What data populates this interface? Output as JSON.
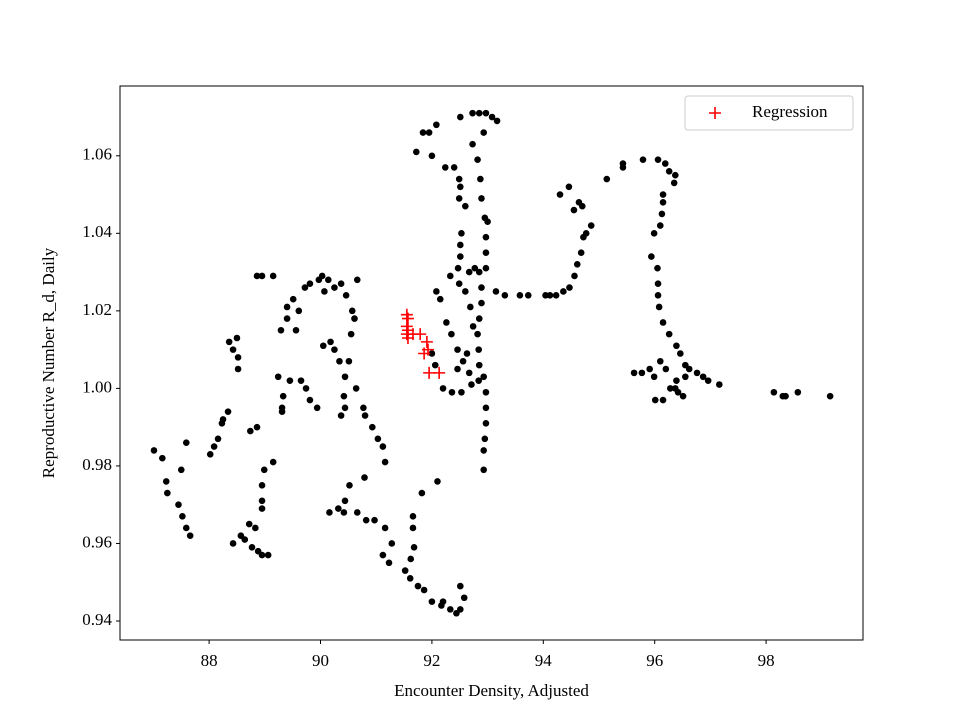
{
  "chart_data": {
    "type": "scatter",
    "xlabel": "Encounter Density, Adjusted",
    "ylabel": "Reproductive Number R_d, Daily",
    "xlim": [
      86.4,
      99.74
    ],
    "ylim": [
      0.9351,
      1.078
    ],
    "xticks": [
      88,
      90,
      92,
      94,
      96,
      98
    ],
    "yticks": [
      0.94,
      0.96,
      0.98,
      {
        "value": 1,
        "label": "1.00"
      },
      1.02,
      1.04,
      1.06
    ],
    "legend": "upper right",
    "series": [
      {
        "color": "#000000",
        "marker": "dot",
        "x": [
          87.01,
          87.16,
          87.23,
          87.25,
          87.45,
          87.52,
          87.59,
          87.66,
          87.5,
          87.59,
          88.02,
          88.09,
          88.16,
          88.23,
          88.34,
          88.25,
          88.36,
          88.43,
          88.5,
          88.52,
          88.52,
          88.74,
          88.86,
          88.86,
          88.95,
          89.15,
          88.43,
          88.57,
          88.64,
          88.72,
          88.77,
          88.88,
          88.95,
          89.06,
          88.95,
          88.95,
          88.95,
          88.99,
          89.15,
          88.83,
          89.24,
          89.33,
          89.31,
          89.31,
          89.45,
          89.29,
          89.4,
          89.4,
          89.51,
          89.61,
          89.56,
          89.72,
          89.81,
          89.97,
          90.03,
          90.14,
          90.07,
          90.25,
          90.37,
          90.46,
          90.66,
          89.65,
          89.74,
          89.81,
          89.94,
          90.05,
          90.18,
          90.25,
          90.34,
          90.44,
          90.42,
          90.44,
          90.37,
          90.57,
          90.61,
          90.55,
          90.51,
          90.64,
          90.77,
          90.8,
          90.93,
          91.03,
          91.12,
          91.16,
          90.79,
          90.44,
          90.52,
          90.42,
          90.16,
          90.32,
          90.66,
          90.82,
          90.97,
          91.16,
          91.12,
          91.28,
          91.23,
          91.52,
          91.61,
          91.75,
          91.86,
          91.66,
          91.66,
          91.68,
          91.62,
          91.82,
          92.1,
          92.0,
          92.17,
          92.33,
          92.44,
          92.51,
          92.58,
          92.51,
          92.2,
          91.72,
          91.84,
          91.95,
          92.08,
          92.0,
          92.24,
          92.4,
          92.49,
          92.51,
          92.49,
          92.6,
          92.51,
          92.73,
          92.85,
          92.97,
          93.08,
          93.17,
          92.93,
          92.73,
          92.82,
          92.87,
          92.89,
          92.95,
          93.0,
          92.97,
          92.97,
          92.97,
          92.89,
          92.89,
          92.85,
          92.82,
          92.84,
          92.85,
          92.93,
          92.97,
          92.97,
          92.97,
          92.95,
          92.93,
          92.93,
          92.53,
          92.51,
          92.51,
          92.47,
          92.49,
          92.33,
          92.08,
          92.15,
          92.26,
          92.35,
          92.46,
          92.6,
          92.67,
          92.69,
          92.74,
          92.63,
          92.56,
          92.46,
          92.0,
          92.06,
          92.2,
          92.36,
          92.53,
          92.71,
          92.67,
          92.84,
          92.77,
          92.85,
          93.15,
          93.31,
          93.58,
          93.73,
          94.04,
          94.12,
          94.23,
          94.36,
          94.47,
          94.56,
          94.61,
          94.68,
          94.72,
          94.77,
          94.86,
          94.7,
          94.64,
          94.55,
          94.46,
          94.3,
          95.14,
          95.43,
          95.43,
          95.79,
          96.06,
          96.19,
          96.26,
          96.37,
          96.35,
          96.15,
          96.15,
          96.13,
          96.1,
          95.99,
          95.94,
          96.05,
          96.06,
          96.06,
          96.08,
          96.15,
          96.26,
          96.39,
          96.46,
          96.55,
          96.62,
          96.76,
          96.87,
          96.96,
          97.16,
          95.63,
          95.77,
          95.91,
          95.99,
          96.1,
          96.2,
          96.01,
          96.15,
          96.28,
          96.42,
          96.51,
          96.37,
          96.39,
          96.55,
          98.14,
          98.3,
          98.35,
          98.57,
          99.15
        ],
        "y": [
          0.984,
          0.982,
          0.976,
          0.973,
          0.97,
          0.967,
          0.964,
          0.962,
          0.979,
          0.986,
          0.983,
          0.985,
          0.987,
          0.991,
          0.994,
          0.992,
          1.012,
          1.01,
          1.013,
          1.008,
          1.005,
          0.989,
          0.99,
          1.029,
          1.029,
          1.029,
          0.96,
          0.962,
          0.961,
          0.965,
          0.959,
          0.958,
          0.957,
          0.957,
          0.969,
          0.971,
          0.975,
          0.979,
          0.981,
          0.964,
          1.003,
          0.998,
          0.995,
          0.994,
          1.002,
          1.015,
          1.018,
          1.021,
          1.023,
          1.02,
          1.015,
          1.026,
          1.027,
          1.028,
          1.029,
          1.028,
          1.025,
          1.026,
          1.027,
          1.024,
          1.028,
          1.002,
          1.0,
          0.997,
          0.995,
          1.011,
          1.012,
          1.01,
          1.007,
          1.003,
          0.998,
          0.995,
          0.993,
          1.02,
          1.018,
          1.014,
          1.007,
          1.0,
          0.995,
          0.993,
          0.99,
          0.987,
          0.985,
          0.981,
          0.977,
          0.971,
          0.975,
          0.968,
          0.968,
          0.969,
          0.968,
          0.966,
          0.966,
          0.964,
          0.957,
          0.96,
          0.955,
          0.953,
          0.951,
          0.949,
          0.948,
          0.967,
          0.964,
          0.959,
          0.956,
          0.973,
          0.976,
          0.945,
          0.944,
          0.943,
          0.942,
          0.943,
          0.946,
          0.949,
          0.945,
          1.061,
          1.066,
          1.066,
          1.068,
          1.06,
          1.057,
          1.057,
          1.054,
          1.052,
          1.049,
          1.047,
          1.07,
          1.071,
          1.071,
          1.071,
          1.07,
          1.069,
          1.066,
          1.063,
          1.059,
          1.054,
          1.049,
          1.044,
          1.043,
          1.039,
          1.035,
          1.031,
          1.026,
          1.022,
          1.018,
          1.014,
          1.01,
          1.006,
          1.003,
          0.999,
          0.995,
          0.991,
          0.987,
          0.984,
          0.979,
          1.04,
          1.037,
          1.034,
          1.031,
          1.027,
          1.029,
          1.025,
          1.023,
          1.017,
          1.014,
          1.01,
          1.025,
          1.03,
          1.021,
          1.016,
          1.009,
          1.007,
          1.005,
          1.009,
          1.006,
          1.0,
          0.999,
          0.999,
          1.001,
          1.004,
          1.002,
          1.031,
          1.03,
          1.025,
          1.024,
          1.024,
          1.024,
          1.024,
          1.024,
          1.024,
          1.025,
          1.026,
          1.029,
          1.032,
          1.035,
          1.039,
          1.04,
          1.042,
          1.047,
          1.048,
          1.046,
          1.052,
          1.05,
          1.054,
          1.058,
          1.057,
          1.059,
          1.059,
          1.058,
          1.056,
          1.055,
          1.053,
          1.05,
          1.048,
          1.045,
          1.042,
          1.04,
          1.034,
          1.031,
          1.027,
          1.024,
          1.021,
          1.017,
          1.014,
          1.011,
          1.009,
          1.006,
          1.005,
          1.004,
          1.003,
          1.002,
          1.001,
          1.004,
          1.004,
          1.005,
          1.003,
          1.007,
          1.005,
          0.997,
          0.997,
          1.0,
          0.999,
          0.998,
          1.0,
          1.002,
          1.003,
          0.999,
          0.998,
          0.998,
          0.999,
          0.998
        ]
      },
      {
        "name": "Regression",
        "color": "#ff0000",
        "marker": "plus",
        "x": [
          91.55,
          91.57,
          91.55,
          91.57,
          91.55,
          91.57,
          91.66,
          91.79,
          91.91,
          91.93,
          91.86,
          91.95,
          92.13
        ],
        "y": [
          1.019,
          1.018,
          1.016,
          1.015,
          1.014,
          1.013,
          1.014,
          1.014,
          1.012,
          1.01,
          1.009,
          1.004,
          1.004
        ]
      }
    ]
  }
}
